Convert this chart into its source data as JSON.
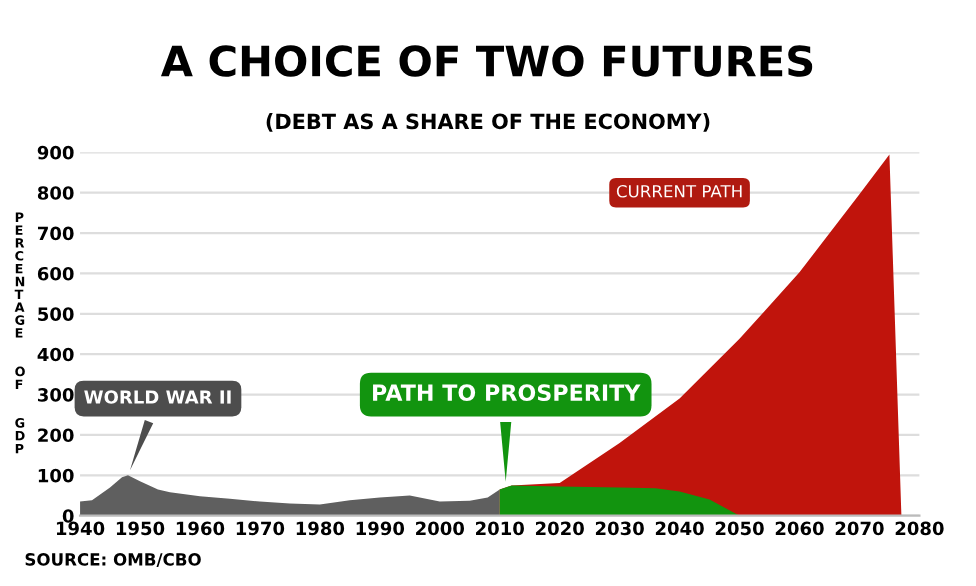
{
  "chart_data": {
    "type": "area",
    "title": "A CHOICE OF TWO FUTURES",
    "subtitle": "(DEBT AS A SHARE OF THE ECONOMY)",
    "ylabel": "PERCENTAGE OF GDP",
    "series": [
      {
        "color": "#5f5f5f",
        "x": [
          1940,
          1942,
          1945,
          1947,
          1948,
          1950,
          1953,
          1955,
          1960,
          1965,
          1970,
          1975,
          1980,
          1985,
          1990,
          1995,
          2000,
          2005,
          2008,
          2010
        ],
        "values": [
          35,
          38,
          70,
          95,
          100,
          85,
          65,
          58,
          48,
          42,
          35,
          30,
          28,
          38,
          45,
          50,
          35,
          37,
          45,
          65
        ]
      },
      {
        "color": "#c0140c",
        "x": [
          2010,
          2012,
          2020,
          2030,
          2040,
          2050,
          2060,
          2070,
          2075,
          2077
        ],
        "values": [
          65,
          75,
          81,
          180,
          290,
          438,
          603,
          796,
          895,
          0
        ]
      },
      {
        "color": "#12940f",
        "x": [
          2010,
          2012,
          2020,
          2030,
          2036,
          2040,
          2045,
          2050
        ],
        "values": [
          65,
          75,
          72,
          70,
          68,
          60,
          40,
          0
        ]
      }
    ],
    "xlim": [
      1940,
      2080
    ],
    "xticks": [
      1940,
      1950,
      1960,
      1970,
      1980,
      1990,
      2000,
      2010,
      2020,
      2030,
      2040,
      2050,
      2060,
      2070,
      2080
    ],
    "ylim": [
      0,
      900
    ],
    "yticks": [
      0,
      100,
      200,
      300,
      400,
      500,
      600,
      700,
      800,
      900
    ],
    "grid": "y",
    "annotations": [
      {
        "text": "WORLD WAR II",
        "x": 1948,
        "y": 100
      },
      {
        "text": "PATH TO PROSPERITY",
        "x": 2011,
        "y": 70
      },
      "CURRENT PATH",
      "SOURCE: OMB/CBO"
    ]
  }
}
